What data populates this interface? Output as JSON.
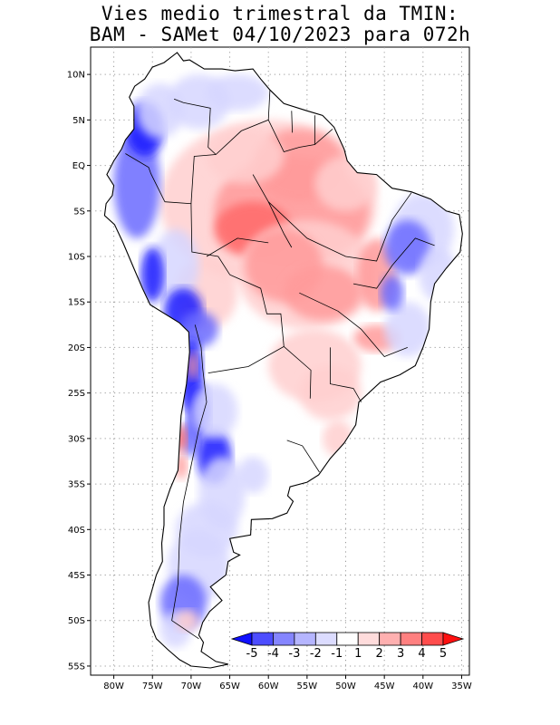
{
  "title": {
    "line1": "Vies medio trimestral da TMIN:",
    "line2": "BAM - SAMet 04/10/2023  para 072h"
  },
  "map": {
    "region": "South America",
    "lon_range": [
      -83,
      -34
    ],
    "lat_range": [
      -56,
      13
    ],
    "lat_labels": [
      {
        "lat": 10,
        "label": "10N"
      },
      {
        "lat": 5,
        "label": "5N"
      },
      {
        "lat": 0,
        "label": "EQ"
      },
      {
        "lat": -5,
        "label": "5S"
      },
      {
        "lat": -10,
        "label": "10S"
      },
      {
        "lat": -15,
        "label": "15S"
      },
      {
        "lat": -20,
        "label": "20S"
      },
      {
        "lat": -25,
        "label": "25S"
      },
      {
        "lat": -30,
        "label": "30S"
      },
      {
        "lat": -35,
        "label": "35S"
      },
      {
        "lat": -40,
        "label": "40S"
      },
      {
        "lat": -45,
        "label": "45S"
      },
      {
        "lat": -50,
        "label": "50S"
      },
      {
        "lat": -55,
        "label": "55S"
      }
    ],
    "lon_labels": [
      {
        "lon": -80,
        "label": "80W"
      },
      {
        "lon": -75,
        "label": "75W"
      },
      {
        "lon": -70,
        "label": "70W"
      },
      {
        "lon": -65,
        "label": "65W"
      },
      {
        "lon": -60,
        "label": "60W"
      },
      {
        "lon": -55,
        "label": "55W"
      },
      {
        "lon": -50,
        "label": "50W"
      },
      {
        "lon": -45,
        "label": "45W"
      },
      {
        "lon": -40,
        "label": "40W"
      },
      {
        "lon": -35,
        "label": "35W"
      }
    ]
  },
  "colorbar": {
    "labels": [
      "-5",
      "-4",
      "-3",
      "-2",
      "-1",
      "1",
      "2",
      "3",
      "4",
      "5"
    ],
    "colors": [
      "#1010ff",
      "#4d4dff",
      "#8585ff",
      "#b5b5ff",
      "#dcdcff",
      "#ffffff",
      "#ffdcdc",
      "#ffb0b0",
      "#ff8080",
      "#ff4c4c",
      "#ff1010"
    ]
  },
  "colors": {
    "warm_strong": "#ff6a6a",
    "warm_mid": "#ff9a9a",
    "warm_light": "#ffcfcf",
    "cool_strong": "#1818ff",
    "cool_mid": "#6a6aff",
    "cool_light": "#d6d6ff"
  }
}
